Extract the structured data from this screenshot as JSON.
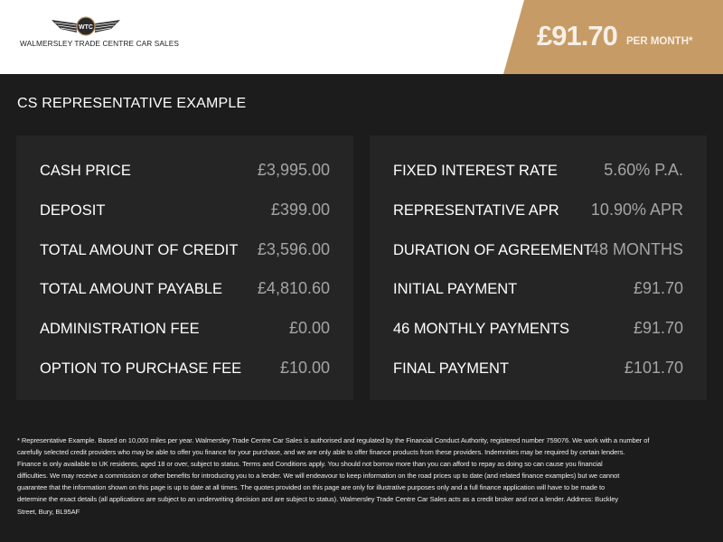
{
  "header": {
    "logo_badge": "WTC",
    "dealer_name": "WALMERSLEY TRADE CENTRE CAR SALES",
    "price": "£91.70",
    "price_suffix": "PER MONTH*",
    "accent_color": "#c69b66"
  },
  "section_title": "CS REPRESENTATIVE EXAMPLE",
  "left_panel": [
    {
      "label": "CASH PRICE",
      "value": "£3,995.00"
    },
    {
      "label": "DEPOSIT",
      "value": "£399.00"
    },
    {
      "label": "TOTAL AMOUNT OF CREDIT",
      "value": "£3,596.00"
    },
    {
      "label": "TOTAL AMOUNT PAYABLE",
      "value": "£4,810.60"
    },
    {
      "label": "ADMINISTRATION FEE",
      "value": "£0.00"
    },
    {
      "label": "OPTION TO PURCHASE FEE",
      "value": "£10.00"
    }
  ],
  "right_panel": [
    {
      "label": "FIXED INTEREST RATE",
      "value": "5.60% P.A."
    },
    {
      "label": "REPRESENTATIVE APR",
      "value": "10.90% APR"
    },
    {
      "label": "DURATION OF AGREEMENT",
      "value": "48 MONTHS"
    },
    {
      "label": "INITIAL PAYMENT",
      "value": "£91.70"
    },
    {
      "label": "46 MONTHLY PAYMENTS",
      "value": "£91.70"
    },
    {
      "label": "FINAL PAYMENT",
      "value": "£101.70"
    }
  ],
  "disclaimer": [
    "* Representative Example. Based on 10,000 miles per year. Walmersley Trade Centre Car Sales is authorised and regulated by the Financial Conduct Authority, registered number 759076. We work with a number of",
    "carefully selected credit providers who may be able to offer you finance for your purchase, and we are only able to offer finance products from these providers. Indemnities may be required by certain lenders.",
    "Finance is only available to UK residents, aged 18 or over, subject to status. Terms and Conditions apply. You should not borrow more than you can afford to repay as doing so can cause you financial",
    "difficulties. We may receive a commission or other benefits for introducing you to a lender. We will endeavour to keep information on the road prices up to date (and related finance examples) but we cannot",
    "guarantee that the information shown on this page is up to date at all times. The quotes provided on this page are only for illustrative purposes only and a full finance application will have to be made to",
    "determine the exact details (all applications are subject to an underwriting decision and are subject to status). Walmersley Trade Centre Car Sales acts as a credit broker and not a lender. Address: Buckley",
    "Street, Bury, BL95AF"
  ]
}
